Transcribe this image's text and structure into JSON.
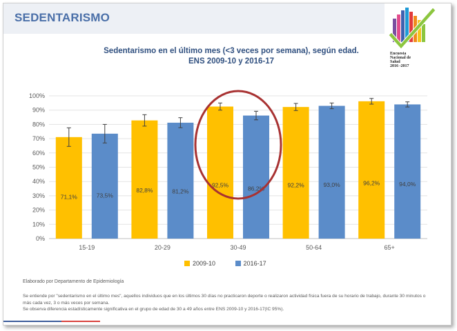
{
  "header": {
    "title": "SEDENTARISMO"
  },
  "logo": {
    "lines": [
      "Encuesta",
      "Nacional de",
      "Salud",
      "2016 -2017"
    ]
  },
  "chart_data": {
    "type": "bar",
    "title_lines": [
      "Sedentarismo en el último mes (<3 veces por semana), según edad.",
      "ENS 2009-10 y 2016-17"
    ],
    "categories": [
      "15-19",
      "20-29",
      "30-49",
      "50-64",
      "65+"
    ],
    "series": [
      {
        "name": "2009-10",
        "color": "#ffc000",
        "values": [
          71.1,
          82.8,
          92.5,
          92.2,
          96.2
        ],
        "labels": [
          "71,1%",
          "82,8%",
          "92,5%",
          "92,2%",
          "96,2%"
        ],
        "error": [
          6.5,
          4,
          2.5,
          2.5,
          2
        ]
      },
      {
        "name": "2016-17",
        "color": "#5b8cc9",
        "values": [
          73.5,
          81.2,
          86.2,
          93.0,
          94.0
        ],
        "labels": [
          "73,5%",
          "81,2%",
          "86,2%",
          "93,0%",
          "94,0%"
        ],
        "error": [
          6.5,
          3.5,
          3,
          2,
          1.8
        ]
      }
    ],
    "ylim": [
      0,
      100
    ],
    "y_ticks": [
      0,
      10,
      20,
      30,
      40,
      50,
      60,
      70,
      80,
      90,
      100
    ],
    "y_tick_labels": [
      "0%",
      "10%",
      "20%",
      "30%",
      "40%",
      "50%",
      "60%",
      "70%",
      "80%",
      "90%",
      "100%"
    ],
    "grid": true,
    "legend_position": "bottom",
    "highlight_category": "30-49",
    "highlight_color": "#a83232"
  },
  "footer": {
    "source": "Elaborado por Departamento de Epidemiología",
    "note1": "Se entiende por \"sedentarismo en el último mes\", aquellos individuos que en los últimos 30 días no practicaron deporte o realizaron actividad física fuera de su horario de trabajo, durante 30 minutos o más cada vez, 3 o más veces por semana.",
    "note2": "Se observa diferencia estadísticamente significativa en el grupo de edad de 30 a 49 años entre ENS 2009-10 y 2016-17(IC 95%)."
  }
}
